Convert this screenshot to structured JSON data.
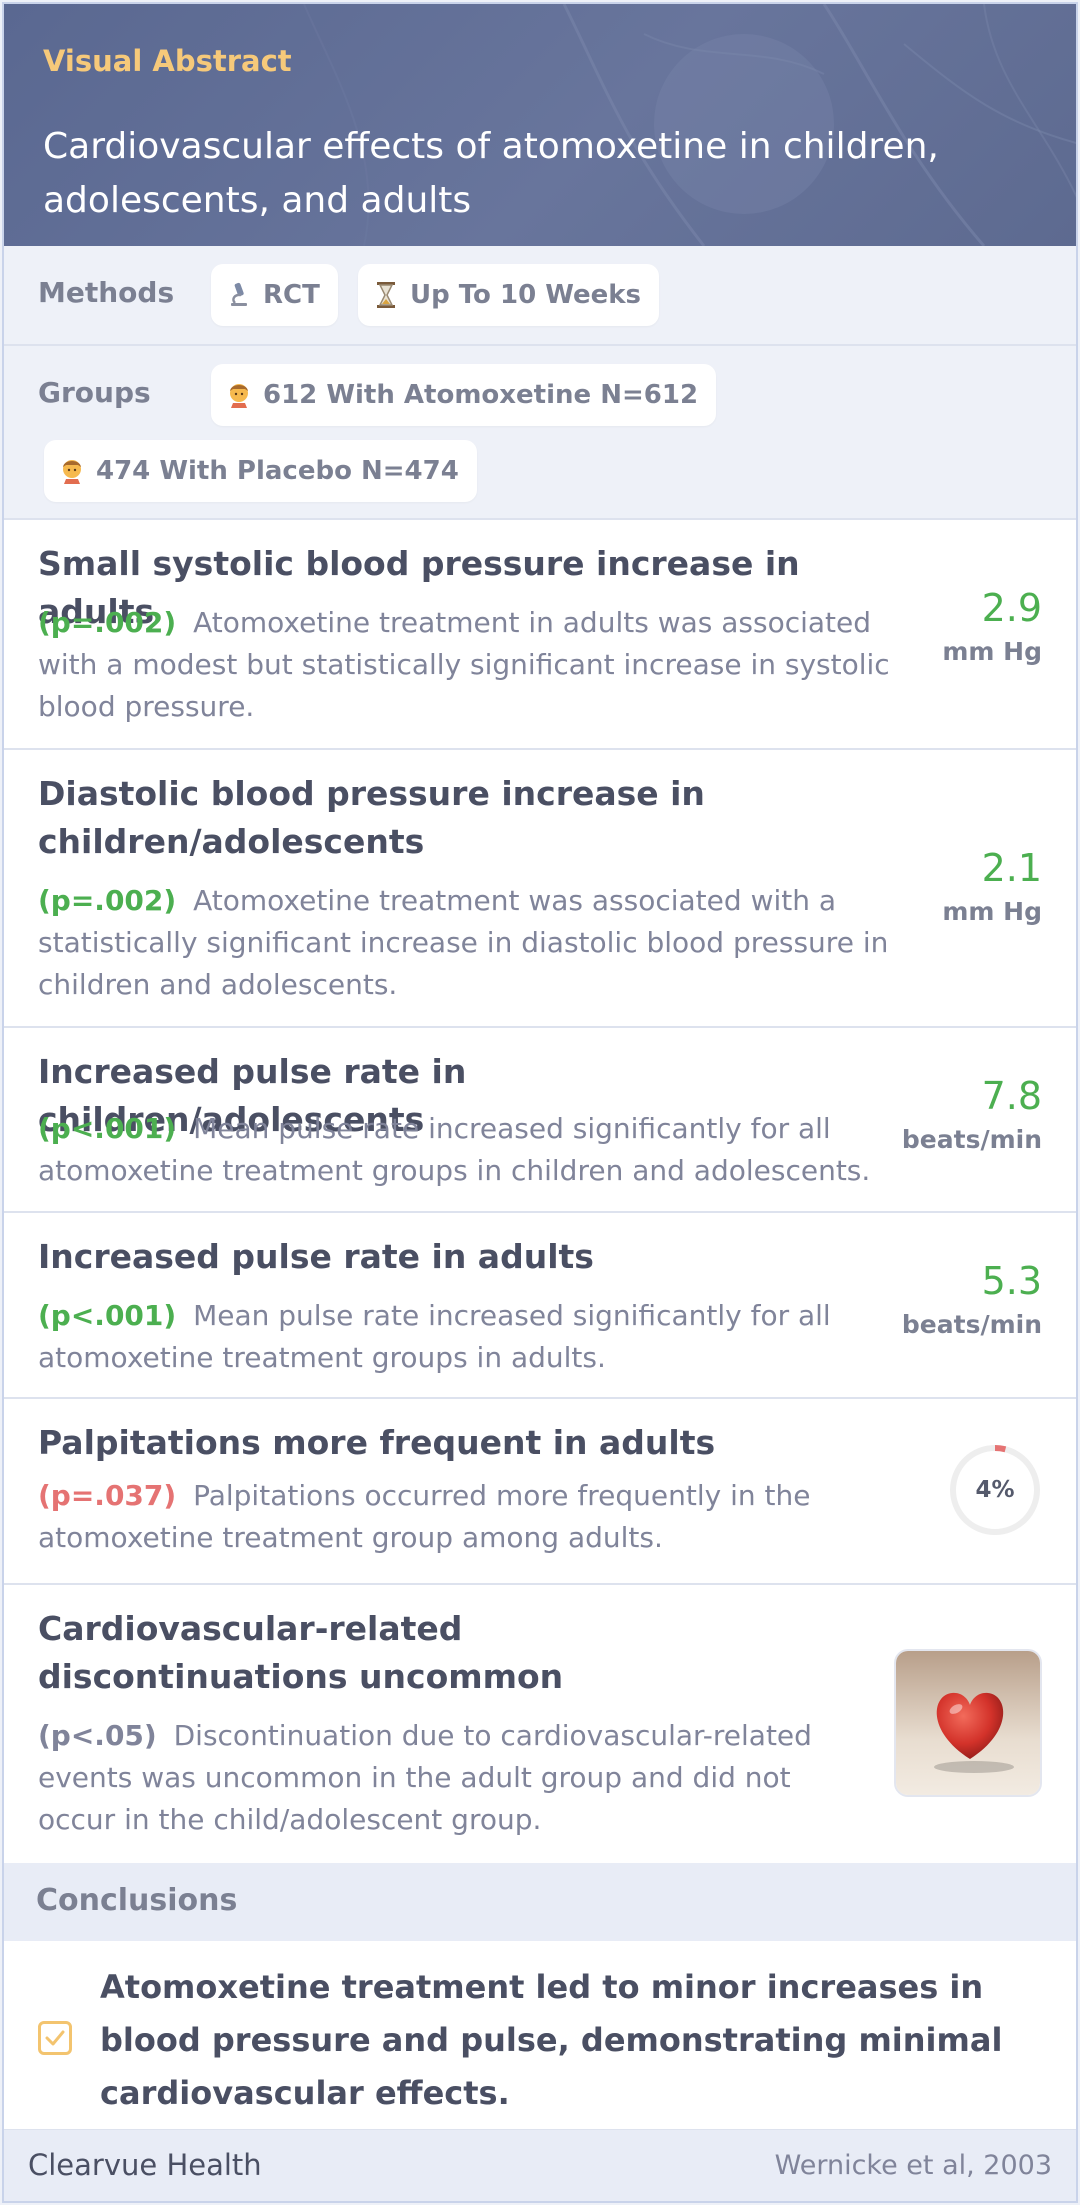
{
  "header": {
    "kicker": "Visual Abstract",
    "title": "Cardiovascular effects of atomoxetine in children, adolescents, and adults"
  },
  "methods": {
    "label": "Methods",
    "chips": [
      {
        "icon": "microscope-icon",
        "text": "RCT"
      },
      {
        "icon": "hourglass-icon",
        "text": "Up To 10 Weeks"
      }
    ]
  },
  "groups": {
    "label": "Groups",
    "chips": [
      {
        "icon": "person-icon",
        "text": "612 With Atomoxetine N=612"
      },
      {
        "icon": "person-icon",
        "text": "474 With Placebo N=474"
      }
    ]
  },
  "findings": [
    {
      "title": "Small systolic blood pressure increase in adults",
      "p": "(p=.002)",
      "p_color": "#4caf50",
      "desc": "Atomoxetine treatment in adults was associated with a modest but statistically significant increase in systolic blood pressure.",
      "value": "2.9",
      "unit": "mm Hg"
    },
    {
      "title": "Diastolic blood pressure increase in children/adolescents",
      "p": "(p=.002)",
      "p_color": "#4caf50",
      "desc": "Atomoxetine treatment was associated with a statistically significant increase in diastolic blood pressure in children and adolescents.",
      "value": "2.1",
      "unit": "mm Hg"
    },
    {
      "title": "Increased pulse rate in children/adolescents",
      "p": "(p<.001)",
      "p_color": "#4caf50",
      "desc": "Mean pulse rate increased significantly for all atomoxetine treatment groups in children and adolescents.",
      "value": "7.8",
      "unit": "beats/min"
    },
    {
      "title": "Increased pulse rate in adults",
      "p": "(p<.001)",
      "p_color": "#4caf50",
      "desc": "Mean pulse rate increased significantly for all atomoxetine treatment groups in adults.",
      "value": "5.3",
      "unit": "beats/min"
    },
    {
      "title": "Palpitations more frequent in adults",
      "p": "(p=.037)",
      "p_color": "#e57373",
      "desc": "Palpitations occurred more frequently in the atomoxetine treatment group among adults.",
      "ring_percent": 4,
      "ring_label": "4%",
      "ring_color": "#e57373"
    },
    {
      "title": "Cardiovascular-related discontinuations uncommon",
      "p": "(p<.05)",
      "p_color": "#80849a",
      "desc": "Discontinuation due to cardiovascular-related events was uncommon in the adult group and did not occur in the child/adolescent group.",
      "image_icon": "heart-icon"
    }
  ],
  "conclusions": {
    "label": "Conclusions",
    "text": "Atomoxetine treatment led to minor increases in blood pressure and pulse, demonstrating minimal cardiovascular effects."
  },
  "footer": {
    "brand": "Clearvue Health",
    "citation": "Wernicke et al, 2003"
  }
}
